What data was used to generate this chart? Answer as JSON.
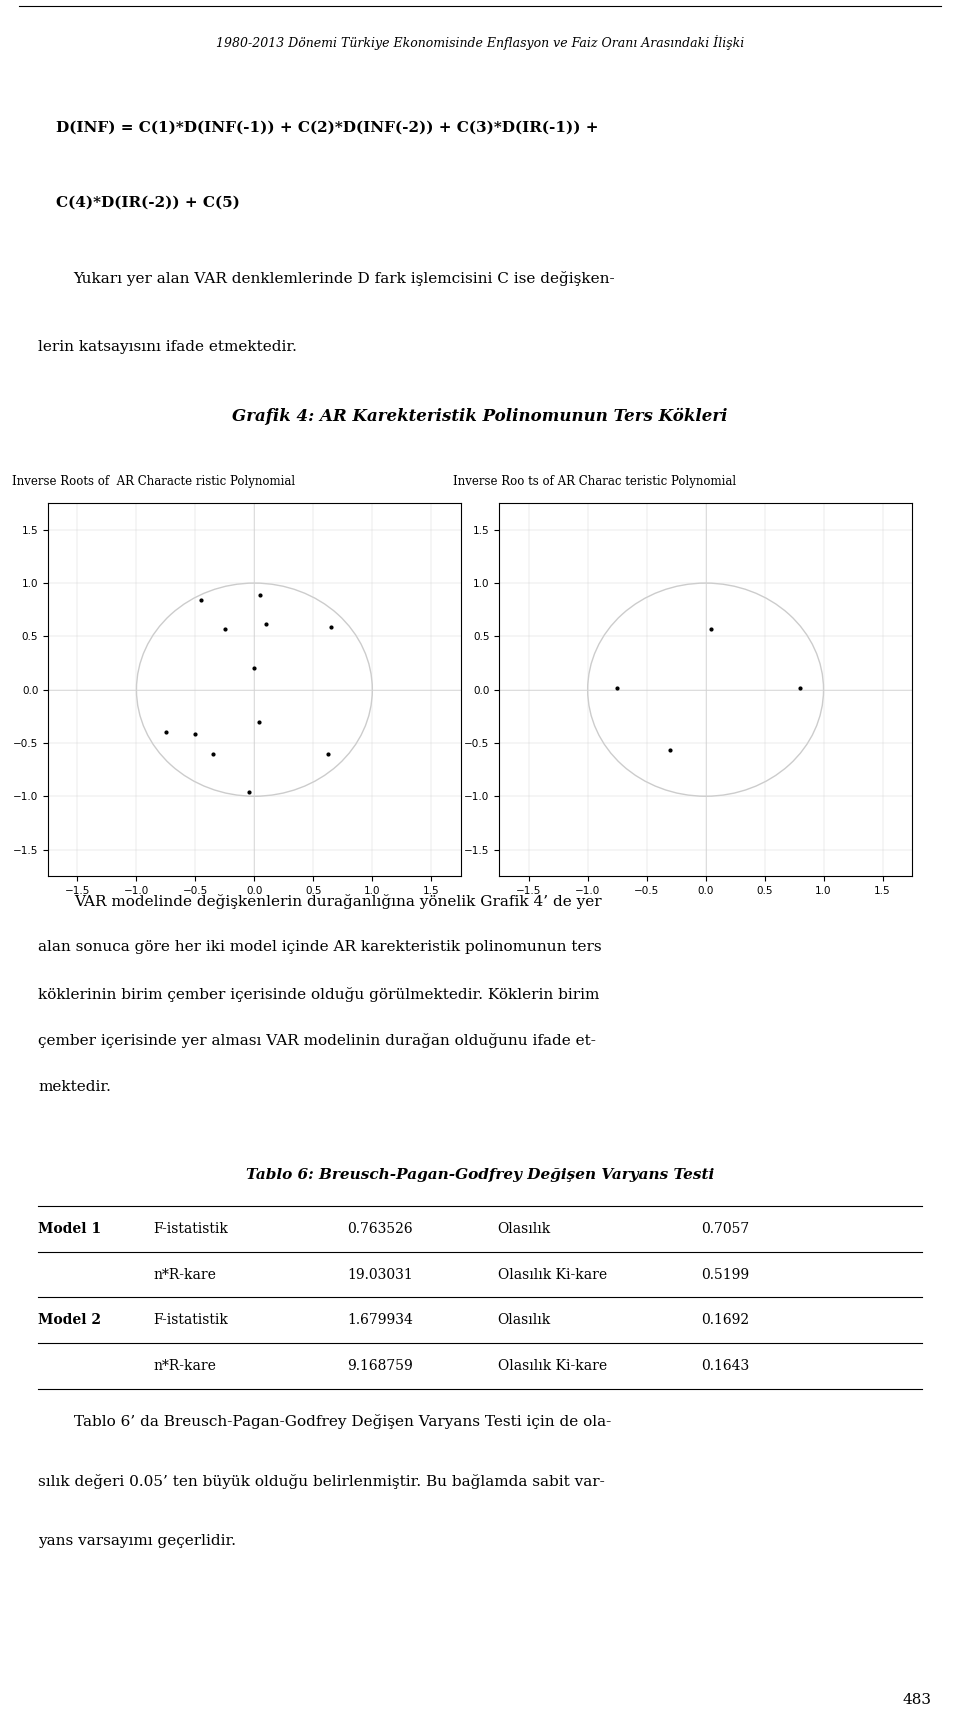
{
  "title_header": "1980-2013 Dönemi Türkiye Ekonomisinde Enflasyon ve Faiz Oranı Arasındaki İlişki",
  "equation_line1": "D(INF) = C(1)*D(INF(-1)) + C(2)*D(INF(-2)) + C(3)*D(IR(-1)) +",
  "equation_line2": "C(4)*D(IR(-2)) + C(5)",
  "paragraph1_line1": "Yukarı yer alan VAR denklemlerinde D fark işlemcisini C ise değişken-",
  "paragraph1_line2": "lerin katsayısını ifade etmektedir.",
  "grafik_title": "Grafik 4: AR Karekteristik Polinomunun Ters Kökleri",
  "plot1_title": "Inverse Roots of  AR Characte ristic Polynomial",
  "plot2_title": "Inverse Roo ts of AR Charac teristic Polynomial",
  "plot1_points_x": [
    -0.45,
    0.05,
    -0.25,
    0.1,
    0.65,
    0.0,
    0.04,
    -0.5,
    -0.35,
    -0.05,
    0.62,
    -0.75
  ],
  "plot1_points_y": [
    0.84,
    0.89,
    0.57,
    0.62,
    0.59,
    0.2,
    -0.3,
    -0.42,
    -0.6,
    -0.96,
    -0.6,
    -0.4
  ],
  "plot2_points_x": [
    0.05,
    0.8,
    -0.75,
    -0.3
  ],
  "plot2_points_y": [
    0.57,
    0.02,
    0.02,
    -0.57
  ],
  "paragraph2_line1": "VAR modelinde değişkenlerin durağanlığına yönelik Grafik 4’ de yer",
  "paragraph2_line2": "alan sonuca göre her iki model içinde AR karekteristik polinomunun ters",
  "paragraph2_line3": "köklerinin birim çember içerisinde olduğu görülmektedir. Köklerin birim",
  "paragraph2_line4": "çember içerisinde yer alması VAR modelinin durağan olduğunu ifade et-",
  "paragraph2_line5": "mektedir.",
  "tablo_title": "Tablo 6: Breusch-Pagan-Godfrey Değişen Varyans Testi",
  "table_rows": [
    [
      "Model 1",
      "F-istatistik",
      "0.763526",
      "Olasılık",
      "0.7057"
    ],
    [
      "",
      "n*R-kare",
      "19.03031",
      "Olasılık Ki-kare",
      "0.5199"
    ],
    [
      "Model 2",
      "F-istatistik",
      "1.679934",
      "Olasılık",
      "0.1692"
    ],
    [
      "",
      "n*R-kare",
      "9.168759",
      "Olasılık Ki-kare",
      "0.1643"
    ]
  ],
  "paragraph3_line1": "Tablo 6’ da Breusch-Pagan-Godfrey Değişen Varyans Testi için de ola-",
  "paragraph3_line2": "sılık değeri 0.05’ ten büyük olduğu belirlenmiştir. Bu bağlamda sabit var-",
  "paragraph3_line3": "yans varsayımı geçerlidir.",
  "page_number": "483",
  "bg_color": "#ffffff",
  "text_color": "#000000",
  "circle_color": "#cccccc",
  "dot_color": "#000000"
}
